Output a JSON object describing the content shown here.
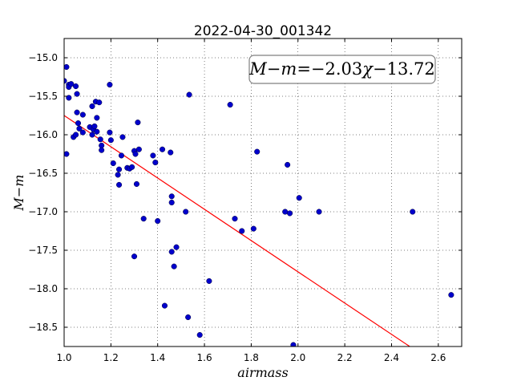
{
  "chart_data": {
    "type": "scatter",
    "title": "2022-04-30_001342",
    "xlabel": "airmass",
    "ylabel": "M−m",
    "xlim": [
      1.0,
      2.7
    ],
    "ylim": [
      -18.75,
      -14.75
    ],
    "y_inverted": true,
    "grid": true,
    "grid_style": "dotted",
    "x_ticks": [
      1.0,
      1.2,
      1.4,
      1.6,
      1.8,
      2.0,
      2.2,
      2.4,
      2.6
    ],
    "x_tick_labels": [
      "1.0",
      "1.2",
      "1.4",
      "1.6",
      "1.8",
      "2.0",
      "2.2",
      "2.4",
      "2.6"
    ],
    "y_ticks": [
      -15.0,
      -15.5,
      -16.0,
      -16.5,
      -17.0,
      -17.5,
      -18.0,
      -18.5
    ],
    "y_tick_labels": [
      "−15.0",
      "−15.5",
      "−16.0",
      "−16.5",
      "−17.0",
      "−17.5",
      "−18.0",
      "−18.5"
    ],
    "annotation": {
      "text": "M−m=−2.03χ−13.72",
      "parts": [
        {
          "t": "M",
          "italic": true
        },
        {
          "t": "−",
          "italic": false
        },
        {
          "t": "m",
          "italic": true
        },
        {
          "t": "=−2.03",
          "italic": false
        },
        {
          "t": "χ",
          "italic": true
        },
        {
          "t": "−13.72",
          "italic": false
        }
      ],
      "placement": "top-right"
    },
    "fit": {
      "slope": -2.03,
      "intercept": -13.72,
      "x_range": [
        1.0,
        2.7
      ],
      "color": "#ff0000"
    },
    "marker_color": "#0000cc",
    "points": [
      {
        "x": 1.0,
        "y": -15.3
      },
      {
        "x": 1.01,
        "y": -15.12
      },
      {
        "x": 1.02,
        "y": -15.35
      },
      {
        "x": 1.02,
        "y": -15.38
      },
      {
        "x": 1.03,
        "y": -15.34
      },
      {
        "x": 1.02,
        "y": -15.52
      },
      {
        "x": 1.01,
        "y": -16.25
      },
      {
        "x": 1.04,
        "y": -16.03
      },
      {
        "x": 1.05,
        "y": -16.0
      },
      {
        "x": 1.05,
        "y": -15.37
      },
      {
        "x": 1.055,
        "y": -15.47
      },
      {
        "x": 1.055,
        "y": -15.71
      },
      {
        "x": 1.06,
        "y": -15.85
      },
      {
        "x": 1.065,
        "y": -15.92
      },
      {
        "x": 1.08,
        "y": -15.74
      },
      {
        "x": 1.08,
        "y": -15.97
      },
      {
        "x": 1.11,
        "y": -15.9
      },
      {
        "x": 1.12,
        "y": -15.63
      },
      {
        "x": 1.125,
        "y": -15.93
      },
      {
        "x": 1.13,
        "y": -15.89
      },
      {
        "x": 1.12,
        "y": -16.0
      },
      {
        "x": 1.135,
        "y": -15.57
      },
      {
        "x": 1.14,
        "y": -15.78
      },
      {
        "x": 1.15,
        "y": -15.58
      },
      {
        "x": 1.14,
        "y": -15.96
      },
      {
        "x": 1.155,
        "y": -16.06
      },
      {
        "x": 1.16,
        "y": -16.14
      },
      {
        "x": 1.16,
        "y": -16.2
      },
      {
        "x": 1.195,
        "y": -15.35
      },
      {
        "x": 1.195,
        "y": -15.97
      },
      {
        "x": 1.2,
        "y": -16.07
      },
      {
        "x": 1.21,
        "y": -16.37
      },
      {
        "x": 1.235,
        "y": -16.45
      },
      {
        "x": 1.23,
        "y": -16.52
      },
      {
        "x": 1.235,
        "y": -16.65
      },
      {
        "x": 1.245,
        "y": -16.27
      },
      {
        "x": 1.25,
        "y": -16.03
      },
      {
        "x": 1.27,
        "y": -16.43
      },
      {
        "x": 1.28,
        "y": -16.44
      },
      {
        "x": 1.29,
        "y": -16.42
      },
      {
        "x": 1.3,
        "y": -16.21
      },
      {
        "x": 1.305,
        "y": -16.25
      },
      {
        "x": 1.31,
        "y": -16.64
      },
      {
        "x": 1.3,
        "y": -17.58
      },
      {
        "x": 1.315,
        "y": -15.84
      },
      {
        "x": 1.32,
        "y": -16.19
      },
      {
        "x": 1.34,
        "y": -17.09
      },
      {
        "x": 1.38,
        "y": -16.27
      },
      {
        "x": 1.39,
        "y": -16.36
      },
      {
        "x": 1.4,
        "y": -17.12
      },
      {
        "x": 1.42,
        "y": -16.19
      },
      {
        "x": 1.43,
        "y": -18.22
      },
      {
        "x": 1.455,
        "y": -16.23
      },
      {
        "x": 1.46,
        "y": -16.8
      },
      {
        "x": 1.46,
        "y": -16.88
      },
      {
        "x": 1.46,
        "y": -17.52
      },
      {
        "x": 1.47,
        "y": -17.71
      },
      {
        "x": 1.48,
        "y": -17.46
      },
      {
        "x": 1.52,
        "y": -17.0
      },
      {
        "x": 1.53,
        "y": -18.37
      },
      {
        "x": 1.535,
        "y": -15.48
      },
      {
        "x": 1.58,
        "y": -18.6
      },
      {
        "x": 1.62,
        "y": -17.9
      },
      {
        "x": 1.71,
        "y": -15.61
      },
      {
        "x": 1.73,
        "y": -17.09
      },
      {
        "x": 1.76,
        "y": -17.25
      },
      {
        "x": 1.81,
        "y": -17.22
      },
      {
        "x": 1.825,
        "y": -16.22
      },
      {
        "x": 1.945,
        "y": -17.0
      },
      {
        "x": 1.955,
        "y": -16.39
      },
      {
        "x": 1.965,
        "y": -17.02
      },
      {
        "x": 1.98,
        "y": -18.73
      },
      {
        "x": 2.005,
        "y": -16.82
      },
      {
        "x": 2.09,
        "y": -17.0
      },
      {
        "x": 2.49,
        "y": -17.0
      },
      {
        "x": 2.655,
        "y": -18.08
      }
    ]
  }
}
